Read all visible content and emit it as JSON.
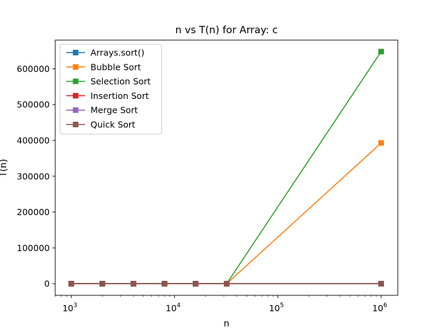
{
  "chart_data": {
    "type": "line",
    "title": "n vs T(n) for Array: c",
    "xlabel": "n",
    "ylabel": "T(n)",
    "x_scale": "log",
    "xlim": [
      700,
      1450000
    ],
    "ylim": [
      -32500,
      680000
    ],
    "x_ticks": [
      {
        "value": 1000,
        "base": "10",
        "exp": "3"
      },
      {
        "value": 10000,
        "base": "10",
        "exp": "4"
      },
      {
        "value": 100000,
        "base": "10",
        "exp": "5"
      },
      {
        "value": 1000000,
        "base": "10",
        "exp": "6"
      }
    ],
    "y_ticks": [
      {
        "value": 0,
        "label": "0"
      },
      {
        "value": 100000,
        "label": "100000"
      },
      {
        "value": 200000,
        "label": "200000"
      },
      {
        "value": 300000,
        "label": "300000"
      },
      {
        "value": 400000,
        "label": "400000"
      },
      {
        "value": 500000,
        "label": "500000"
      },
      {
        "value": 600000,
        "label": "600000"
      }
    ],
    "x": [
      1000,
      2000,
      4000,
      8000,
      16000,
      32000,
      1000000
    ],
    "series": [
      {
        "name": "Arrays.sort()",
        "color": "#1f77b4",
        "values": [
          0,
          0,
          0,
          0,
          0,
          0,
          100
        ]
      },
      {
        "name": "Bubble Sort",
        "color": "#ff7f0e",
        "values": [
          0,
          1,
          4,
          10,
          40,
          150,
          393000
        ]
      },
      {
        "name": "Selection Sort",
        "color": "#2ca02c",
        "values": [
          0,
          1,
          5,
          20,
          70,
          250,
          648000
        ]
      },
      {
        "name": "Insertion Sort",
        "color": "#d62728",
        "values": [
          0,
          0,
          0,
          0,
          0,
          0,
          150
        ]
      },
      {
        "name": "Merge Sort",
        "color": "#9467bd",
        "values": [
          0,
          0,
          0,
          0,
          0,
          0,
          120
        ]
      },
      {
        "name": "Quick Sort",
        "color": "#8c564b",
        "values": [
          0,
          0,
          0,
          0,
          0,
          0,
          80
        ]
      }
    ],
    "legend_position": "upper-left",
    "grid": false,
    "marker": "square"
  }
}
